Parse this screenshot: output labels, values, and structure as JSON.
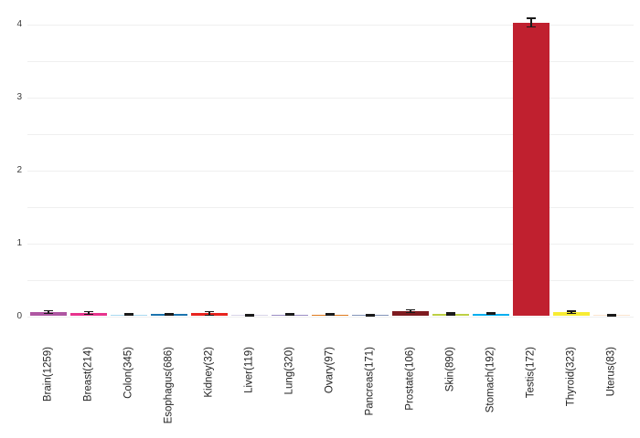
{
  "chart_data": {
    "type": "bar",
    "title": "",
    "xlabel": "",
    "ylabel": "",
    "categories": [
      "Brain(1259)",
      "Breast(214)",
      "Colon(345)",
      "Esophagus(686)",
      "Kidney(32)",
      "Liver(119)",
      "Lung(320)",
      "Ovary(97)",
      "Pancreas(171)",
      "Prostate(106)",
      "Skin(890)",
      "Stomach(192)",
      "Testis(172)",
      "Thyroid(323)",
      "Uterus(83)"
    ],
    "values": [
      0.055,
      0.045,
      0.02,
      0.027,
      0.04,
      0.016,
      0.022,
      0.022,
      0.016,
      0.07,
      0.03,
      0.035,
      4.02,
      0.055,
      0.016
    ],
    "errors": [
      0.02,
      0.018,
      0.008,
      0.01,
      0.025,
      0.008,
      0.01,
      0.012,
      0.008,
      0.02,
      0.012,
      0.012,
      0.06,
      0.015,
      0.01
    ],
    "colors": [
      "#AE56A2",
      "#E7338D",
      "#A8D9F0",
      "#1B74AE",
      "#E8241F",
      "#D8D4E8",
      "#9A8CC4",
      "#DE7A1E",
      "#8293B9",
      "#7E1B20",
      "#BDD044",
      "#00AEEF",
      "#C0202F",
      "#F7EC33",
      "#FAE4CE"
    ],
    "error_bar_color": "#1a1a1a",
    "yticks": [
      0,
      1,
      2,
      3,
      4
    ],
    "ytick_labels": [
      "0",
      "1",
      "2",
      "3",
      "4"
    ],
    "grid_step": 0.5,
    "ylim": [
      0,
      4.3
    ],
    "grid": "horizontal",
    "gridline_color": "#efefef",
    "legend": "none",
    "background": "#ffffff"
  }
}
